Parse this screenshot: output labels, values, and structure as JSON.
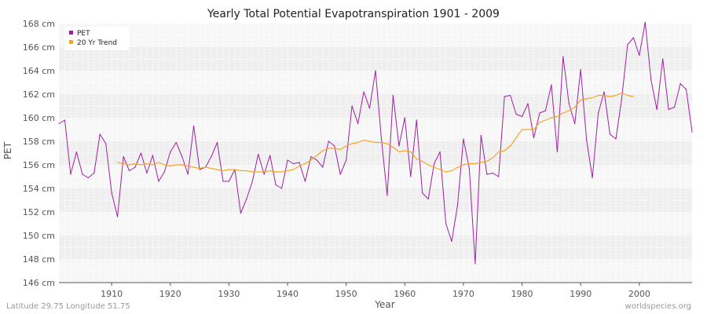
{
  "chart_data": {
    "type": "line",
    "title": "Yearly Total Potential Evapotranspiration 1901 - 2009",
    "xlabel": "Year",
    "ylabel": "PET",
    "xlim": [
      1901,
      2009
    ],
    "ylim": [
      146,
      168
    ],
    "y_unit": "cm",
    "x_ticks": [
      1910,
      1920,
      1930,
      1940,
      1950,
      1960,
      1970,
      1980,
      1990,
      2000
    ],
    "x_tick_labels": [
      "1910",
      "1920",
      "1930",
      "1940",
      "1950",
      "1960",
      "1970",
      "1980",
      "1990",
      "2000"
    ],
    "y_ticks": [
      146,
      148,
      150,
      152,
      154,
      156,
      158,
      160,
      162,
      164,
      166,
      168
    ],
    "y_tick_labels": [
      "146 cm",
      "148 cm",
      "150 cm",
      "152 cm",
      "154 cm",
      "156 cm",
      "158 cm",
      "160 cm",
      "162 cm",
      "164 cm",
      "166 cm",
      "168 cm"
    ],
    "grid": true,
    "legend_position": "top-left",
    "series": [
      {
        "name": "PET",
        "color": "#a020a0",
        "x": [
          1901,
          1902,
          1903,
          1904,
          1905,
          1906,
          1907,
          1908,
          1909,
          1910,
          1911,
          1912,
          1913,
          1914,
          1915,
          1916,
          1917,
          1918,
          1919,
          1920,
          1921,
          1922,
          1923,
          1924,
          1925,
          1926,
          1927,
          1928,
          1929,
          1930,
          1931,
          1932,
          1933,
          1934,
          1935,
          1936,
          1937,
          1938,
          1939,
          1940,
          1941,
          1942,
          1943,
          1944,
          1945,
          1946,
          1947,
          1948,
          1949,
          1950,
          1951,
          1952,
          1953,
          1954,
          1955,
          1956,
          1957,
          1958,
          1959,
          1960,
          1961,
          1962,
          1963,
          1964,
          1965,
          1966,
          1967,
          1968,
          1969,
          1970,
          1971,
          1972,
          1973,
          1974,
          1975,
          1976,
          1977,
          1978,
          1979,
          1980,
          1981,
          1982,
          1983,
          1984,
          1985,
          1986,
          1987,
          1988,
          1989,
          1990,
          1991,
          1992,
          1993,
          1994,
          1995,
          1996,
          1997,
          1998,
          1999,
          2000,
          2001,
          2002,
          2003,
          2004,
          2005,
          2006,
          2007,
          2008,
          2009
        ],
        "values": [
          159.5,
          159.8,
          155.2,
          157.1,
          155.2,
          154.9,
          155.3,
          158.6,
          157.8,
          153.6,
          151.6,
          156.7,
          155.5,
          155.8,
          157.0,
          155.3,
          156.8,
          154.6,
          155.4,
          157.1,
          157.9,
          156.7,
          155.2,
          159.3,
          155.6,
          155.8,
          156.7,
          157.9,
          154.6,
          154.6,
          155.6,
          151.9,
          153.1,
          154.6,
          156.9,
          155.2,
          156.8,
          154.3,
          154.0,
          156.4,
          156.1,
          156.2,
          154.6,
          156.7,
          156.4,
          155.8,
          158.0,
          157.6,
          155.2,
          156.4,
          161.0,
          159.5,
          162.2,
          160.8,
          164.0,
          158.2,
          153.4,
          161.9,
          157.6,
          160.0,
          155.0,
          159.8,
          153.6,
          153.1,
          156.1,
          157.1,
          151.0,
          149.5,
          152.6,
          158.2,
          155.7,
          147.6,
          158.5,
          155.2,
          155.3,
          155.0,
          161.8,
          161.9,
          160.3,
          160.1,
          161.2,
          158.3,
          160.4,
          160.6,
          162.8,
          157.1,
          165.2,
          161.2,
          159.5,
          164.1,
          158.1,
          154.9,
          160.4,
          162.2,
          158.6,
          158.2,
          161.6,
          166.2,
          166.8,
          165.3,
          168.1,
          163.2,
          160.7,
          165.0,
          160.7,
          160.9,
          162.9,
          162.4,
          158.8
        ]
      },
      {
        "name": "20 Yr Trend",
        "color": "#f5a623",
        "x": [
          1911,
          1912,
          1913,
          1914,
          1915,
          1916,
          1917,
          1918,
          1919,
          1920,
          1921,
          1922,
          1923,
          1924,
          1925,
          1926,
          1927,
          1928,
          1929,
          1930,
          1931,
          1932,
          1933,
          1934,
          1935,
          1936,
          1937,
          1938,
          1939,
          1940,
          1941,
          1942,
          1943,
          1944,
          1945,
          1946,
          1947,
          1948,
          1949,
          1950,
          1951,
          1952,
          1953,
          1954,
          1955,
          1956,
          1957,
          1958,
          1959,
          1960,
          1961,
          1962,
          1963,
          1964,
          1965,
          1966,
          1967,
          1968,
          1969,
          1970,
          1971,
          1972,
          1973,
          1974,
          1975,
          1976,
          1977,
          1978,
          1979,
          1980,
          1981,
          1982,
          1983,
          1984,
          1985,
          1986,
          1987,
          1988,
          1989,
          1990,
          1991,
          1992,
          1993,
          1994,
          1995,
          1996,
          1997,
          1998,
          1999
        ],
        "values": [
          156.2,
          156.1,
          156.0,
          156.1,
          156.0,
          156.1,
          156.0,
          156.2,
          156.0,
          155.9,
          156.0,
          156.0,
          155.9,
          155.8,
          155.7,
          155.8,
          155.7,
          155.6,
          155.5,
          155.6,
          155.6,
          155.5,
          155.5,
          155.4,
          155.4,
          155.4,
          155.5,
          155.4,
          155.4,
          155.5,
          155.6,
          155.9,
          156.1,
          156.4,
          156.8,
          157.2,
          157.4,
          157.4,
          157.3,
          157.6,
          157.8,
          157.9,
          158.1,
          158.0,
          157.9,
          157.9,
          157.8,
          157.5,
          157.1,
          157.2,
          157.1,
          156.5,
          156.3,
          156.0,
          155.8,
          155.6,
          155.4,
          155.5,
          155.8,
          156.0,
          156.1,
          156.1,
          156.2,
          156.3,
          156.6,
          157.1,
          157.2,
          157.6,
          158.3,
          159.0,
          159.0,
          159.0,
          159.6,
          159.8,
          160.0,
          160.1,
          160.4,
          160.6,
          160.9,
          161.5,
          161.6,
          161.7,
          161.9,
          161.9,
          161.8,
          161.9,
          162.1,
          161.9,
          161.8
        ]
      }
    ]
  },
  "footer": {
    "left": "Latitude 29.75 Longitude 51.75",
    "right": "worldspecies.org"
  }
}
